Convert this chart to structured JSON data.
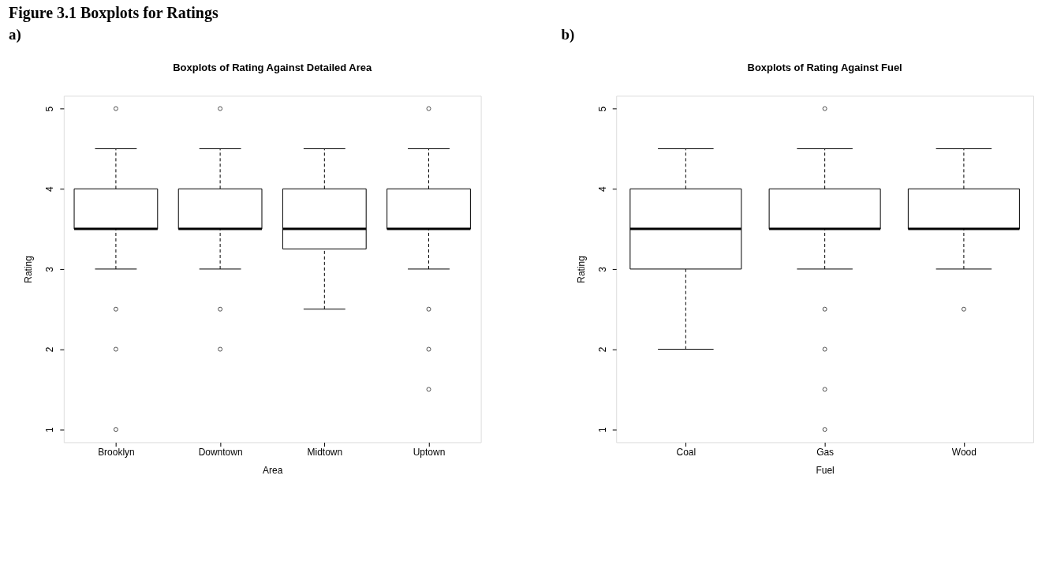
{
  "chart_data": [
    {
      "type": "box",
      "title": "Boxplots of Rating Against Detailed Area",
      "xlabel": "Area",
      "ylabel": "Rating",
      "categories": [
        "Brooklyn",
        "Downtown",
        "Midtown",
        "Uptown"
      ],
      "boxes": [
        {
          "low": 3,
          "q1": 3.5,
          "median": 3.5,
          "q3": 4,
          "high": 4.5,
          "outliers": [
            5,
            2.5,
            2,
            1
          ]
        },
        {
          "low": 3,
          "q1": 3.5,
          "median": 3.5,
          "q3": 4,
          "high": 4.5,
          "outliers": [
            5,
            2.5,
            2
          ]
        },
        {
          "low": 2.5,
          "q1": 3.25,
          "median": 3.5,
          "q3": 4,
          "high": 4.5
        },
        {
          "low": 3,
          "q1": 3.5,
          "median": 3.5,
          "q3": 4,
          "high": 4.5,
          "outliers": [
            5,
            2.5,
            2,
            1.5
          ]
        }
      ],
      "ylim": [
        0.84,
        5.16
      ],
      "yticks": [
        1,
        2,
        3,
        4,
        5
      ],
      "grid": false,
      "annotations": [
        "Figure 3.1    Boxplots for Ratings",
        "a)"
      ]
    },
    {
      "type": "box",
      "title": "Boxplots of Rating Against Fuel",
      "xlabel": "Fuel",
      "ylabel": "Rating",
      "categories": [
        "Coal",
        "Gas",
        "Wood"
      ],
      "boxes": [
        {
          "low": 2,
          "q1": 3,
          "median": 3.5,
          "q3": 4,
          "high": 4.5
        },
        {
          "low": 3,
          "q1": 3.5,
          "median": 3.5,
          "q3": 4,
          "high": 4.5,
          "outliers": [
            5,
            2.5,
            2,
            1.5,
            1
          ]
        },
        {
          "low": 3,
          "q1": 3.5,
          "median": 3.5,
          "q3": 4,
          "high": 4.5,
          "outliers": [
            2.5
          ]
        }
      ],
      "ylim": [
        0.84,
        5.16
      ],
      "yticks": [
        1,
        2,
        3,
        4,
        5
      ],
      "grid": false,
      "annotations": [
        "b)"
      ]
    }
  ]
}
